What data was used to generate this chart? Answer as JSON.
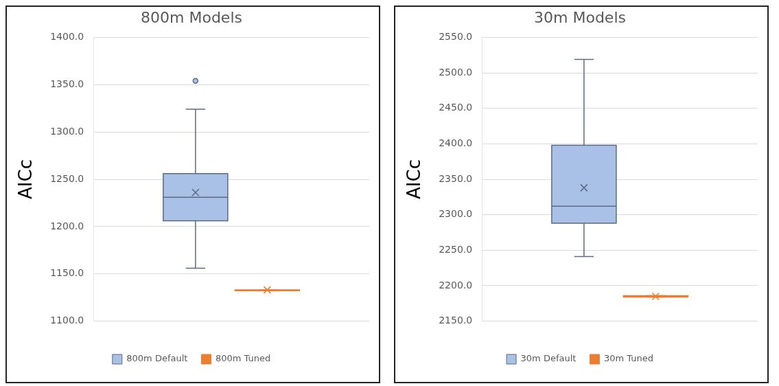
{
  "chart_data": [
    {
      "type": "box",
      "title": "800m Models",
      "ylabel": "AICc",
      "categories": [
        null
      ],
      "ylim": [
        1100,
        1400
      ],
      "yticks": [
        {
          "value": 1100,
          "label": "1100.0"
        },
        {
          "value": 1150,
          "label": "1150.0"
        },
        {
          "value": 1200,
          "label": "1200.0"
        },
        {
          "value": 1250,
          "label": "1250.0"
        },
        {
          "value": 1300,
          "label": "1300.0"
        },
        {
          "value": 1350,
          "label": "1350.0"
        },
        {
          "value": 1400,
          "label": "1400.0"
        }
      ],
      "grid": "y",
      "legend": "bottom",
      "series": [
        {
          "name": "800m Default",
          "color": "#a9c1e7",
          "boxes": [
            {
              "low": 1156,
              "q1": 1206,
              "median": 1231,
              "q3": 1256,
              "high": 1324,
              "mean": 1236,
              "outliers": [
                1354
              ]
            }
          ]
        },
        {
          "name": "800m Tuned",
          "color": "#ed7d31",
          "boxes": [
            {
              "low": 1133,
              "q1": 1133,
              "median": 1133,
              "q3": 1133,
              "high": 1133,
              "mean": 1133
            }
          ]
        }
      ]
    },
    {
      "type": "box",
      "title": "30m Models",
      "ylabel": "AICc",
      "categories": [
        null
      ],
      "ylim": [
        2150,
        2550
      ],
      "yticks": [
        {
          "value": 2150,
          "label": "2150.0"
        },
        {
          "value": 2200,
          "label": "2200.0"
        },
        {
          "value": 2250,
          "label": "2250.0"
        },
        {
          "value": 2300,
          "label": "2300.0"
        },
        {
          "value": 2350,
          "label": "2350.0"
        },
        {
          "value": 2400,
          "label": "2400.0"
        },
        {
          "value": 2450,
          "label": "2450.0"
        },
        {
          "value": 2500,
          "label": "2500.0"
        },
        {
          "value": 2550,
          "label": "2550.0"
        }
      ],
      "grid": "y",
      "legend": "bottom",
      "series": [
        {
          "name": "30m Default",
          "color": "#a9c1e7",
          "boxes": [
            {
              "low": 2241,
              "q1": 2288,
              "median": 2312,
              "q3": 2398,
              "high": 2519,
              "mean": 2338
            }
          ]
        },
        {
          "name": "30m Tuned",
          "color": "#ed7d31",
          "boxes": [
            {
              "low": 2184,
              "q1": 2184,
              "median": 2185,
              "q3": 2186,
              "high": 2186,
              "mean": 2185
            }
          ]
        }
      ]
    }
  ]
}
